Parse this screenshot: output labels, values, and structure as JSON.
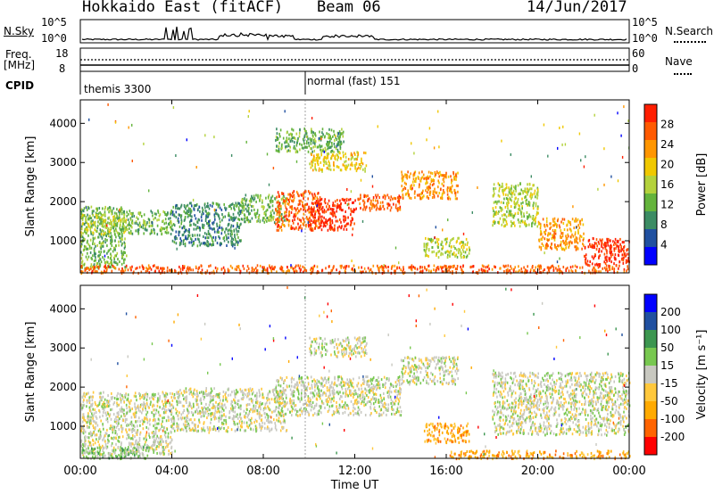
{
  "header": {
    "title": "Hokkaido East (fitACF)",
    "beam": "Beam 06",
    "date": "14/Jun/2017"
  },
  "top_panels": {
    "nsky_label": "N.Sky",
    "nsky_ticks": [
      "10^5",
      "10^0"
    ],
    "nsearch_label": "N.Search",
    "nsearch_ticks": [
      "10^5",
      "10^0"
    ],
    "freq_label_1": "Freq.",
    "freq_label_2": "[MHz]",
    "freq_ticks": [
      "18",
      "8"
    ],
    "nave_label": "Nave",
    "nave_ticks": [
      "60",
      "0"
    ],
    "cpid_label": "CPID",
    "cpid_entries": [
      "themis 3300",
      "normal (fast) 151"
    ]
  },
  "chart_data": [
    {
      "type": "heatmap",
      "name": "power",
      "ylabel": "Slant Range [km]",
      "yticks": [
        "4000",
        "3000",
        "2000",
        "1000"
      ],
      "xticks": [
        "00:00",
        "04:00",
        "08:00",
        "12:00",
        "16:00",
        "20:00",
        "00:00"
      ],
      "colorbar_label": "Power [dB]",
      "colorbar_ticks": [
        "28",
        "24",
        "20",
        "16",
        "12",
        "8",
        "4"
      ],
      "colors": [
        "#0000ff",
        "#2050a0",
        "#3c8c64",
        "#64b43c",
        "#b4d23c",
        "#f0c800",
        "#ff9600",
        "#ff5a00",
        "#ff1e00"
      ],
      "xlim": [
        0,
        24
      ],
      "ylim": [
        180,
        4600
      ],
      "regions": [
        {
          "x0": 0.0,
          "x1": 2.0,
          "y0": 300,
          "y1": 1900,
          "level": 3
        },
        {
          "x0": 0.0,
          "x1": 2.0,
          "y0": 1200,
          "y1": 1700,
          "level": 4
        },
        {
          "x0": 2.0,
          "x1": 4.0,
          "y0": 1200,
          "y1": 1800,
          "level": 3
        },
        {
          "x0": 4.0,
          "x1": 7.0,
          "y0": 900,
          "y1": 2000,
          "level": 2
        },
        {
          "x0": 7.0,
          "x1": 9.0,
          "y0": 1500,
          "y1": 2200,
          "level": 3
        },
        {
          "x0": 8.5,
          "x1": 10.5,
          "y0": 1300,
          "y1": 2300,
          "level": 7
        },
        {
          "x0": 10.0,
          "x1": 12.0,
          "y0": 1300,
          "y1": 2100,
          "level": 8
        },
        {
          "x0": 12.0,
          "x1": 14.0,
          "y0": 1800,
          "y1": 2200,
          "level": 7
        },
        {
          "x0": 14.0,
          "x1": 16.5,
          "y0": 2100,
          "y1": 2800,
          "level": 6
        },
        {
          "x0": 10.0,
          "x1": 12.5,
          "y0": 2800,
          "y1": 3300,
          "level": 5
        },
        {
          "x0": 8.5,
          "x1": 11.5,
          "y0": 3300,
          "y1": 3900,
          "level": 3
        },
        {
          "x0": 15.0,
          "x1": 17.0,
          "y0": 600,
          "y1": 1100,
          "level": 4
        },
        {
          "x0": 18.0,
          "x1": 20.0,
          "y0": 1400,
          "y1": 2500,
          "level": 4
        },
        {
          "x0": 20.0,
          "x1": 22.0,
          "y0": 800,
          "y1": 1600,
          "level": 6
        },
        {
          "x0": 22.0,
          "x1": 24.0,
          "y0": 400,
          "y1": 1100,
          "level": 8
        },
        {
          "x0": 0.0,
          "x1": 24.0,
          "y0": 200,
          "y1": 400,
          "level": 7
        }
      ]
    },
    {
      "type": "heatmap",
      "name": "velocity",
      "ylabel": "Slant Range [km]",
      "yticks": [
        "4000",
        "3000",
        "2000",
        "1000"
      ],
      "xticks": [
        "00:00",
        "04:00",
        "08:00",
        "12:00",
        "16:00",
        "20:00",
        "00:00"
      ],
      "xlabel": "Time UT",
      "colorbar_label": "Velocity [m s⁻¹]",
      "colorbar_ticks": [
        "200",
        "100",
        "50",
        "15",
        "-15",
        "-50",
        "-100",
        "-200"
      ],
      "colors": [
        "#ff0000",
        "#ff6400",
        "#ffaa00",
        "#ffc83c",
        "#c8c8c0",
        "#78c850",
        "#3c9650",
        "#2050a0",
        "#0000ff"
      ],
      "xlim": [
        0,
        24
      ],
      "ylim": [
        180,
        4600
      ],
      "regions": [
        {
          "x0": 0.0,
          "x1": 4.0,
          "y0": 300,
          "y1": 1900,
          "level": 4
        },
        {
          "x0": 4.0,
          "x1": 9.0,
          "y0": 900,
          "y1": 2000,
          "level": 4
        },
        {
          "x0": 8.5,
          "x1": 14.0,
          "y0": 1300,
          "y1": 2300,
          "level": 4
        },
        {
          "x0": 14.0,
          "x1": 16.5,
          "y0": 2100,
          "y1": 2800,
          "level": 4
        },
        {
          "x0": 10.0,
          "x1": 12.5,
          "y0": 2800,
          "y1": 3300,
          "level": 4
        },
        {
          "x0": 15.0,
          "x1": 17.0,
          "y0": 600,
          "y1": 1100,
          "level": 2
        },
        {
          "x0": 18.0,
          "x1": 24.0,
          "y0": 800,
          "y1": 2400,
          "level": 4
        },
        {
          "x0": 0.0,
          "x1": 3.0,
          "y0": 200,
          "y1": 500,
          "level": 5
        },
        {
          "x0": 16.0,
          "x1": 24.0,
          "y0": 200,
          "y1": 400,
          "level": 2
        }
      ]
    }
  ]
}
